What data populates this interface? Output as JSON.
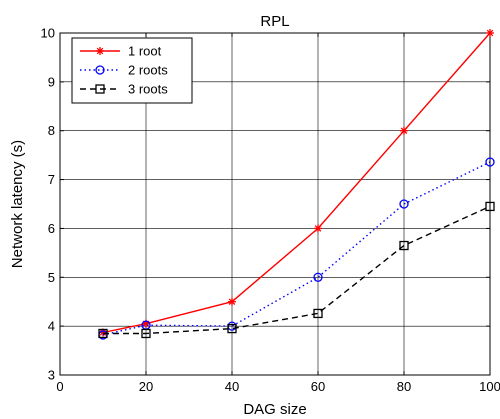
{
  "chart_data": {
    "type": "line",
    "title": "RPL",
    "xlabel": "DAG size",
    "ylabel": "Network latency (s)",
    "xlim": [
      0,
      100
    ],
    "ylim": [
      3,
      10
    ],
    "xticks": [
      0,
      20,
      40,
      60,
      80,
      100
    ],
    "yticks": [
      3,
      4,
      5,
      6,
      7,
      8,
      9,
      10
    ],
    "grid": true,
    "legend_position": "top-left",
    "series": [
      {
        "name": "1 root",
        "color": "#ff0000",
        "line_style": "solid",
        "marker": "star",
        "x": [
          10,
          20,
          40,
          60,
          80,
          100
        ],
        "y": [
          3.87,
          4.05,
          4.5,
          6.0,
          8.0,
          10.0
        ]
      },
      {
        "name": "2 roots",
        "color": "#0000ff",
        "line_style": "dotted",
        "marker": "circle",
        "x": [
          10,
          20,
          40,
          60,
          80,
          100
        ],
        "y": [
          3.82,
          4.02,
          4.0,
          5.0,
          6.5,
          7.36
        ]
      },
      {
        "name": "3 roots",
        "color": "#000000",
        "line_style": "dashed",
        "marker": "square",
        "x": [
          10,
          20,
          40,
          60,
          80,
          100
        ],
        "y": [
          3.85,
          3.85,
          3.95,
          4.26,
          5.65,
          6.45
        ]
      }
    ]
  }
}
